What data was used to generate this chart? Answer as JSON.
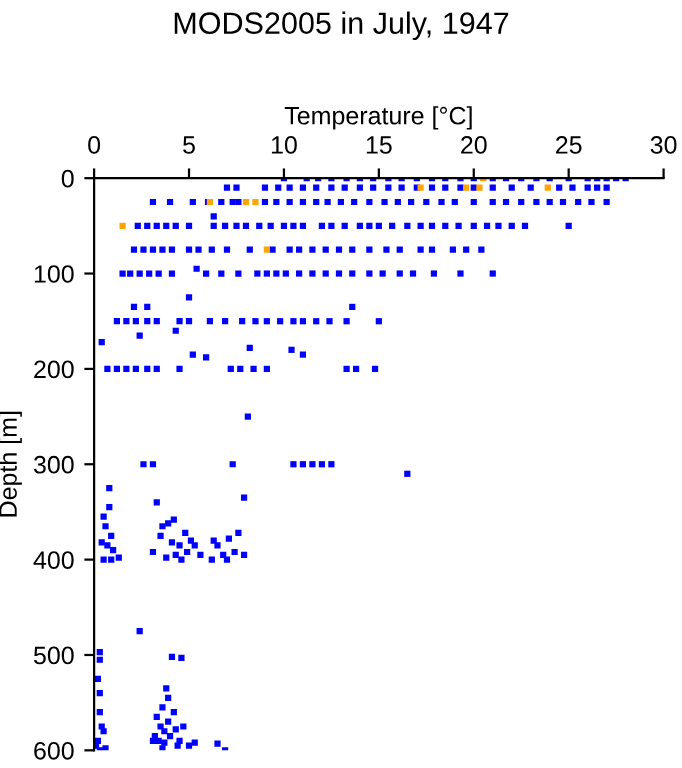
{
  "chart_data": {
    "type": "scatter",
    "title": "MODS2005 in July, 1947",
    "xlabel": "Temperature [°C]",
    "ylabel": "Depth [m]",
    "xlim": [
      0,
      30
    ],
    "xticks": [
      0,
      5,
      10,
      15,
      20,
      25,
      30
    ],
    "ylim": [
      600,
      0
    ],
    "yticks": [
      0,
      100,
      200,
      300,
      400,
      500,
      600
    ],
    "grid": false,
    "marker": "square",
    "series": [
      {
        "color": "#0000ff",
        "x": [
          10,
          11.2,
          11.8,
          12.5,
          13.3,
          14,
          14.7,
          15.5,
          16.2,
          17,
          17.8,
          18.5,
          19.3,
          20,
          21,
          21.7,
          22.5,
          23.3,
          24,
          25,
          26,
          26.5,
          27,
          27.5,
          28,
          7,
          7.5,
          9,
          9.7,
          10.3,
          11,
          11.7,
          12.5,
          13.2,
          14,
          14.7,
          15.5,
          16.2,
          17,
          17.8,
          18.5,
          19.3,
          20,
          21,
          22,
          23,
          24.5,
          25.2,
          26,
          26.5,
          27,
          3.1,
          4,
          5.2,
          6,
          6.7,
          7.3,
          7.6,
          9,
          9.6,
          10.3,
          11,
          11.7,
          12.3,
          13,
          13.7,
          14.5,
          15.3,
          16,
          16.7,
          17.5,
          18.3,
          19,
          20,
          21,
          21.7,
          22.5,
          23.3,
          24,
          24.7,
          25.5,
          26.2,
          27,
          2.3,
          2.8,
          3.3,
          3.8,
          4.3,
          5,
          6.3,
          6.9,
          7.5,
          8,
          8.7,
          9.3,
          10,
          10.5,
          11,
          12,
          12.5,
          13.2,
          14,
          14.5,
          15,
          15.7,
          16.5,
          17.2,
          17.8,
          18.5,
          19.2,
          20,
          20.7,
          21.3,
          22,
          22.7,
          25,
          6.3,
          2.1,
          2.6,
          3.1,
          3.6,
          4.1,
          5,
          5.5,
          6.2,
          7,
          8.2,
          9.4,
          10.3,
          10.8,
          11.5,
          12.2,
          12.9,
          13.6,
          14.5,
          15.4,
          16.1,
          17.2,
          17.8,
          18.9,
          19.6,
          20.4,
          1.5,
          1.9,
          2.4,
          2.9,
          3.4,
          4.1,
          5.4,
          5.9,
          6.7,
          7.6,
          8.6,
          9.1,
          9.6,
          10.1,
          10.8,
          11.5,
          12.2,
          12.9,
          13.6,
          14.5,
          15.2,
          16.1,
          16.8,
          17.9,
          19.3,
          21,
          1.2,
          1.7,
          2.2,
          2.8,
          3.3,
          4.5,
          5,
          6.1,
          6.9,
          7.8,
          8.5,
          9.1,
          9.8,
          10.5,
          11,
          11.7,
          12.4,
          13.3,
          15,
          5,
          2.1,
          2.8,
          4.3,
          2.4,
          13.6,
          0.4,
          0.7,
          1.2,
          1.7,
          2.2,
          2.8,
          3.3,
          4.5,
          5.2,
          5.9,
          7.2,
          7.7,
          8.2,
          8.4,
          9.1,
          10.4,
          11,
          13.3,
          13.8,
          14.8,
          8.1,
          2.6,
          3.1,
          7.3,
          10.5,
          11,
          11.5,
          12,
          12.5,
          16.5,
          0.8,
          7.9,
          3.3,
          0.5,
          0.8,
          0.6,
          0.9,
          0.7,
          1,
          0.5,
          0.9,
          1.3,
          0.4,
          3.1,
          3.5,
          3.9,
          4.2,
          4.5,
          4.8,
          5.1,
          3.8,
          4.3,
          4.9,
          5.3,
          4.1,
          4.6,
          5.6,
          3.6,
          6.2,
          6.5,
          6.8,
          7.1,
          7.4,
          7,
          6.3,
          7.6,
          7.9,
          0.3,
          0.3,
          0.2,
          0.3,
          0.3,
          0.4,
          0.5,
          0.2,
          0.3,
          0.6,
          0.1,
          2.4,
          4.1,
          4.6,
          3.3,
          3.6,
          3.9,
          3.8,
          3.5,
          3.2,
          3.4,
          3.7,
          4,
          4.3,
          4.5,
          3.9,
          4.2,
          4.7,
          5,
          3.1,
          3.6,
          4.4,
          5.3,
          3.7,
          6.5,
          6.9
        ],
        "values": [
          0,
          0,
          0,
          0,
          0,
          0,
          0,
          0,
          0,
          0,
          0,
          0,
          0,
          0,
          0,
          0,
          0,
          0,
          0,
          0,
          0,
          0,
          0,
          0,
          0,
          10,
          10,
          10,
          10,
          10,
          10,
          10,
          10,
          10,
          10,
          10,
          10,
          10,
          10,
          10,
          10,
          10,
          10,
          10,
          10,
          10,
          10,
          10,
          10,
          10,
          10,
          25,
          25,
          25,
          25,
          25,
          25,
          25,
          25,
          25,
          25,
          25,
          25,
          25,
          25,
          25,
          25,
          25,
          25,
          25,
          25,
          25,
          25,
          25,
          25,
          25,
          25,
          25,
          25,
          25,
          25,
          25,
          25,
          50,
          50,
          50,
          50,
          50,
          50,
          50,
          50,
          50,
          50,
          50,
          50,
          50,
          50,
          50,
          50,
          50,
          50,
          50,
          50,
          50,
          50,
          50,
          50,
          50,
          50,
          50,
          50,
          50,
          50,
          50,
          50,
          50,
          40,
          75,
          75,
          75,
          75,
          75,
          75,
          75,
          75,
          75,
          75,
          75,
          75,
          75,
          75,
          75,
          75,
          75,
          75,
          75,
          75,
          75,
          75,
          75,
          75,
          75,
          100,
          100,
          100,
          100,
          100,
          100,
          95,
          100,
          100,
          100,
          100,
          100,
          100,
          100,
          100,
          100,
          100,
          100,
          100,
          100,
          100,
          100,
          100,
          100,
          100,
          100,
          150,
          150,
          150,
          150,
          150,
          150,
          150,
          150,
          150,
          150,
          150,
          150,
          150,
          150,
          150,
          150,
          150,
          150,
          150,
          125,
          135,
          135,
          160,
          165,
          135,
          172,
          200,
          200,
          200,
          200,
          200,
          200,
          200,
          185,
          188,
          200,
          200,
          178,
          200,
          200,
          180,
          185,
          200,
          200,
          200,
          250,
          300,
          300,
          300,
          300,
          300,
          300,
          300,
          300,
          310,
          325,
          335,
          340,
          355,
          345,
          365,
          375,
          385,
          390,
          400,
          400,
          398,
          382,
          392,
          375,
          362,
          358,
          385,
          372,
          380,
          398,
          395,
          392,
          385,
          382,
          400,
          395,
          365,
          400,
          385,
          395,
          378,
          392,
          400,
          380,
          372,
          395,
          497,
          505,
          525,
          540,
          560,
          575,
          580,
          590,
          600,
          598,
          595,
          475,
          502,
          503,
          565,
          555,
          545,
          535,
          575,
          585,
          590,
          592,
          585,
          578,
          590,
          570,
          560,
          575,
          595,
          590,
          598,
          595,
          592,
          580,
          593,
          600
        ]
      },
      {
        "color": "#ffa500",
        "x": [
          1.5,
          6.1,
          8,
          8.5,
          17.2,
          19.6,
          20.3,
          23.9,
          20.5,
          9.1
        ],
        "values": [
          50,
          25,
          25,
          25,
          10,
          10,
          10,
          10,
          0,
          75
        ]
      }
    ]
  }
}
